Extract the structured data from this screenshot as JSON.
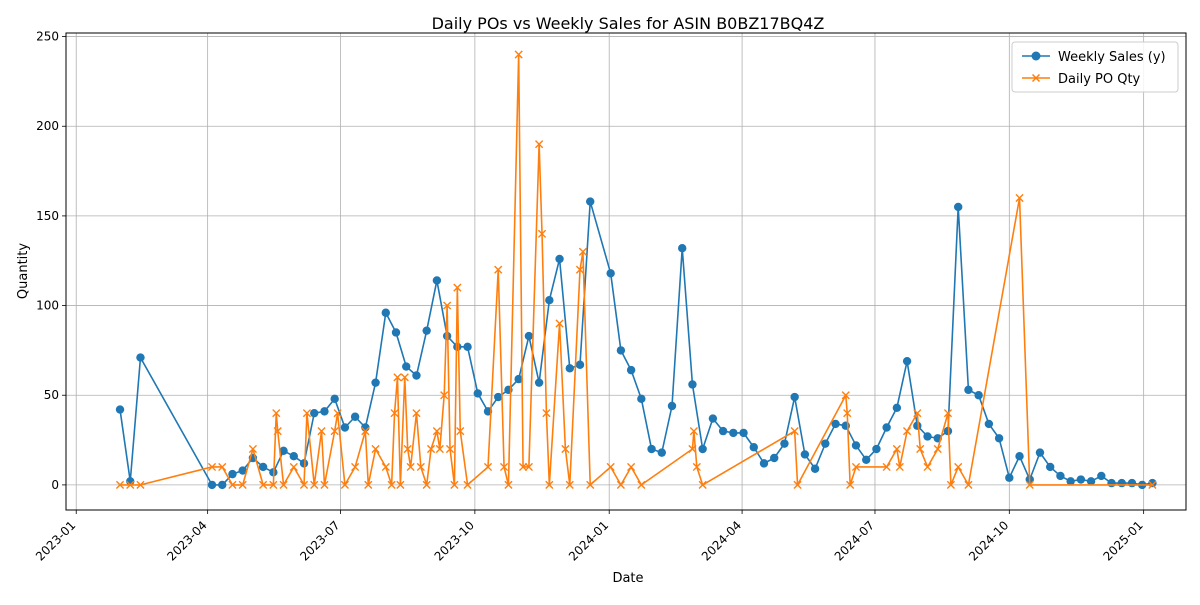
{
  "chart_data": {
    "type": "line",
    "title": "Daily POs vs Weekly Sales for ASIN B0BZ17BQ4Z",
    "xlabel": "Date",
    "ylabel": "Quantity",
    "xlim": [
      "2022-12-25",
      "2025-01-30"
    ],
    "ylim": [
      -14,
      252
    ],
    "x_ticks": [
      "2023-01",
      "2023-04",
      "2023-07",
      "2023-10",
      "2024-01",
      "2024-04",
      "2024-07",
      "2024-10",
      "2025-01"
    ],
    "y_ticks": [
      0,
      50,
      100,
      150,
      200,
      250
    ],
    "grid": true,
    "legend_position": "top-right",
    "colors": {
      "weekly": "#1f77b4",
      "daily": "#ff7f0e"
    },
    "series": [
      {
        "name": "Weekly Sales (y)",
        "marker": "circle",
        "points": [
          [
            "2023-01-31",
            42
          ],
          [
            "2023-02-07",
            2
          ],
          [
            "2023-02-14",
            71
          ],
          [
            "2023-04-04",
            0
          ],
          [
            "2023-04-11",
            0
          ],
          [
            "2023-04-18",
            6
          ],
          [
            "2023-04-25",
            8
          ],
          [
            "2023-05-02",
            15
          ],
          [
            "2023-05-09",
            10
          ],
          [
            "2023-05-16",
            7
          ],
          [
            "2023-05-23",
            19
          ],
          [
            "2023-05-30",
            16
          ],
          [
            "2023-06-06",
            12
          ],
          [
            "2023-06-13",
            40
          ],
          [
            "2023-06-20",
            41
          ],
          [
            "2023-06-27",
            48
          ],
          [
            "2023-07-04",
            32
          ],
          [
            "2023-07-11",
            38
          ],
          [
            "2023-07-18",
            32
          ],
          [
            "2023-07-25",
            57
          ],
          [
            "2023-08-01",
            96
          ],
          [
            "2023-08-08",
            85
          ],
          [
            "2023-08-15",
            66
          ],
          [
            "2023-08-22",
            61
          ],
          [
            "2023-08-29",
            86
          ],
          [
            "2023-09-05",
            114
          ],
          [
            "2023-09-12",
            83
          ],
          [
            "2023-09-19",
            77
          ],
          [
            "2023-09-26",
            77
          ],
          [
            "2023-10-03",
            51
          ],
          [
            "2023-10-10",
            41
          ],
          [
            "2023-10-17",
            49
          ],
          [
            "2023-10-24",
            53
          ],
          [
            "2023-10-31",
            59
          ],
          [
            "2023-11-07",
            83
          ],
          [
            "2023-11-14",
            57
          ],
          [
            "2023-11-21",
            103
          ],
          [
            "2023-11-28",
            126
          ],
          [
            "2023-12-05",
            65
          ],
          [
            "2023-12-12",
            67
          ],
          [
            "2023-12-19",
            158
          ],
          [
            "2024-01-02",
            118
          ],
          [
            "2024-01-09",
            75
          ],
          [
            "2024-01-16",
            64
          ],
          [
            "2024-01-23",
            48
          ],
          [
            "2024-01-30",
            20
          ],
          [
            "2024-02-06",
            18
          ],
          [
            "2024-02-13",
            44
          ],
          [
            "2024-02-20",
            132
          ],
          [
            "2024-02-27",
            56
          ],
          [
            "2024-03-05",
            20
          ],
          [
            "2024-03-12",
            37
          ],
          [
            "2024-03-19",
            30
          ],
          [
            "2024-03-26",
            29
          ],
          [
            "2024-04-02",
            29
          ],
          [
            "2024-04-09",
            21
          ],
          [
            "2024-04-16",
            12
          ],
          [
            "2024-04-23",
            15
          ],
          [
            "2024-04-30",
            23
          ],
          [
            "2024-05-07",
            49
          ],
          [
            "2024-05-14",
            17
          ],
          [
            "2024-05-21",
            9
          ],
          [
            "2024-05-28",
            23
          ],
          [
            "2024-06-04",
            34
          ],
          [
            "2024-06-11",
            33
          ],
          [
            "2024-06-18",
            22
          ],
          [
            "2024-06-25",
            14
          ],
          [
            "2024-07-02",
            20
          ],
          [
            "2024-07-09",
            32
          ],
          [
            "2024-07-16",
            43
          ],
          [
            "2024-07-23",
            69
          ],
          [
            "2024-07-30",
            33
          ],
          [
            "2024-08-06",
            27
          ],
          [
            "2024-08-13",
            26
          ],
          [
            "2024-08-20",
            30
          ],
          [
            "2024-08-27",
            155
          ],
          [
            "2024-09-03",
            53
          ],
          [
            "2024-09-10",
            50
          ],
          [
            "2024-09-17",
            34
          ],
          [
            "2024-09-24",
            26
          ],
          [
            "2024-10-01",
            4
          ],
          [
            "2024-10-08",
            16
          ],
          [
            "2024-10-15",
            3
          ],
          [
            "2024-10-22",
            18
          ],
          [
            "2024-10-29",
            10
          ],
          [
            "2024-11-05",
            5
          ],
          [
            "2024-11-12",
            2
          ],
          [
            "2024-11-19",
            3
          ],
          [
            "2024-11-26",
            2
          ],
          [
            "2024-12-03",
            5
          ],
          [
            "2024-12-10",
            1
          ],
          [
            "2024-12-17",
            1
          ],
          [
            "2024-12-24",
            1
          ],
          [
            "2024-12-31",
            0
          ],
          [
            "2025-01-07",
            1
          ]
        ]
      },
      {
        "name": "Daily PO Qty",
        "marker": "x",
        "points": [
          [
            "2023-01-31",
            0
          ],
          [
            "2023-02-07",
            0
          ],
          [
            "2023-02-14",
            0
          ],
          [
            "2023-04-04",
            10
          ],
          [
            "2023-04-11",
            10
          ],
          [
            "2023-04-18",
            0
          ],
          [
            "2023-04-25",
            0
          ],
          [
            "2023-05-02",
            20
          ],
          [
            "2023-05-09",
            0
          ],
          [
            "2023-05-16",
            0
          ],
          [
            "2023-05-18",
            40
          ],
          [
            "2023-05-19",
            30
          ],
          [
            "2023-05-23",
            0
          ],
          [
            "2023-05-30",
            10
          ],
          [
            "2023-06-06",
            0
          ],
          [
            "2023-06-08",
            40
          ],
          [
            "2023-06-13",
            0
          ],
          [
            "2023-06-18",
            30
          ],
          [
            "2023-06-20",
            0
          ],
          [
            "2023-06-27",
            30
          ],
          [
            "2023-06-29",
            40
          ],
          [
            "2023-07-04",
            0
          ],
          [
            "2023-07-11",
            10
          ],
          [
            "2023-07-18",
            30
          ],
          [
            "2023-07-20",
            0
          ],
          [
            "2023-07-25",
            20
          ],
          [
            "2023-08-01",
            10
          ],
          [
            "2023-08-05",
            0
          ],
          [
            "2023-08-07",
            40
          ],
          [
            "2023-08-09",
            60
          ],
          [
            "2023-08-11",
            0
          ],
          [
            "2023-08-14",
            60
          ],
          [
            "2023-08-16",
            20
          ],
          [
            "2023-08-18",
            10
          ],
          [
            "2023-08-22",
            40
          ],
          [
            "2023-08-25",
            10
          ],
          [
            "2023-08-29",
            0
          ],
          [
            "2023-09-01",
            20
          ],
          [
            "2023-09-05",
            30
          ],
          [
            "2023-09-07",
            20
          ],
          [
            "2023-09-10",
            50
          ],
          [
            "2023-09-12",
            100
          ],
          [
            "2023-09-14",
            20
          ],
          [
            "2023-09-17",
            0
          ],
          [
            "2023-09-19",
            110
          ],
          [
            "2023-09-21",
            30
          ],
          [
            "2023-09-26",
            0
          ],
          [
            "2023-10-10",
            10
          ],
          [
            "2023-10-17",
            120
          ],
          [
            "2023-10-21",
            10
          ],
          [
            "2023-10-24",
            0
          ],
          [
            "2023-10-31",
            240
          ],
          [
            "2023-11-03",
            10
          ],
          [
            "2023-11-07",
            10
          ],
          [
            "2023-11-14",
            190
          ],
          [
            "2023-11-16",
            140
          ],
          [
            "2023-11-19",
            40
          ],
          [
            "2023-11-21",
            0
          ],
          [
            "2023-11-28",
            90
          ],
          [
            "2023-12-02",
            20
          ],
          [
            "2023-12-05",
            0
          ],
          [
            "2023-12-12",
            120
          ],
          [
            "2023-12-14",
            130
          ],
          [
            "2023-12-19",
            0
          ],
          [
            "2024-01-02",
            10
          ],
          [
            "2024-01-09",
            0
          ],
          [
            "2024-01-16",
            10
          ],
          [
            "2024-01-23",
            0
          ],
          [
            "2024-02-27",
            20
          ],
          [
            "2024-02-28",
            30
          ],
          [
            "2024-03-01",
            10
          ],
          [
            "2024-03-05",
            0
          ],
          [
            "2024-05-07",
            30
          ],
          [
            "2024-05-09",
            0
          ],
          [
            "2024-06-11",
            50
          ],
          [
            "2024-06-12",
            40
          ],
          [
            "2024-06-14",
            0
          ],
          [
            "2024-06-18",
            10
          ],
          [
            "2024-07-09",
            10
          ],
          [
            "2024-07-16",
            20
          ],
          [
            "2024-07-18",
            10
          ],
          [
            "2024-07-23",
            30
          ],
          [
            "2024-07-30",
            40
          ],
          [
            "2024-08-01",
            20
          ],
          [
            "2024-08-06",
            10
          ],
          [
            "2024-08-13",
            20
          ],
          [
            "2024-08-20",
            40
          ],
          [
            "2024-08-22",
            0
          ],
          [
            "2024-08-27",
            10
          ],
          [
            "2024-09-03",
            0
          ],
          [
            "2024-10-08",
            160
          ],
          [
            "2024-10-15",
            0
          ],
          [
            "2025-01-07",
            0
          ]
        ]
      }
    ]
  }
}
